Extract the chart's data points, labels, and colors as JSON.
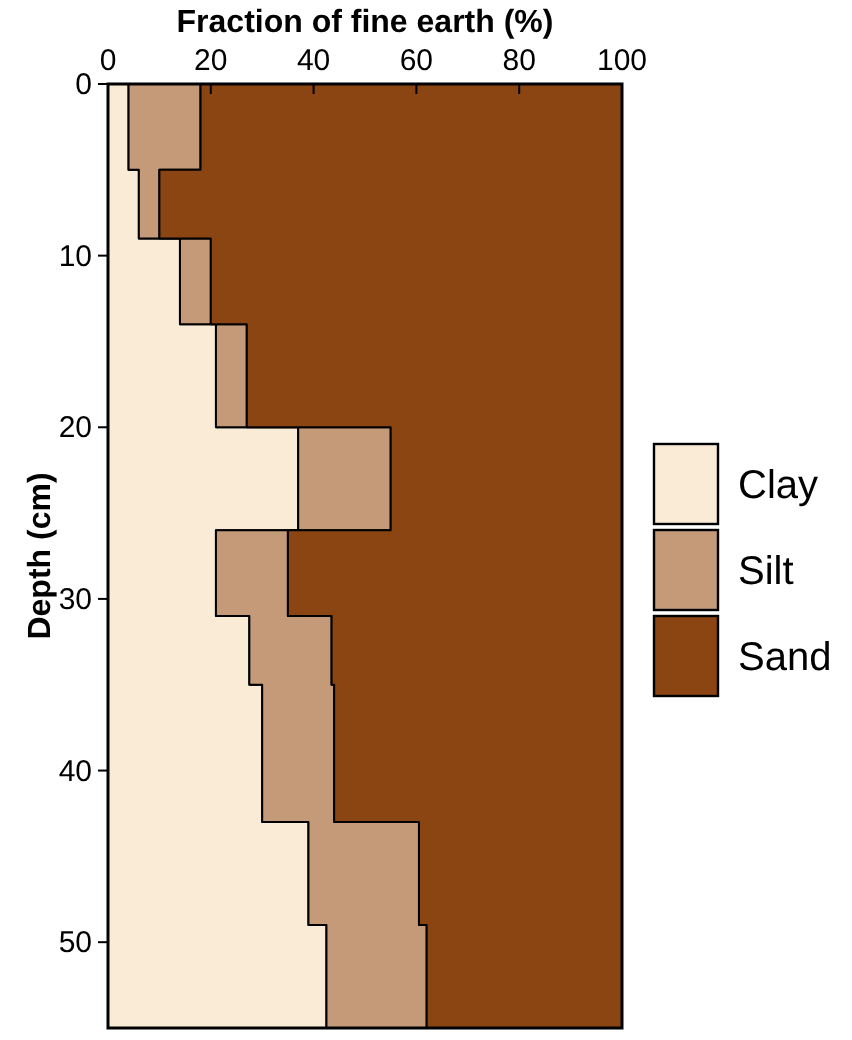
{
  "chart_data": {
    "type": "area",
    "orientation": "horizontal",
    "stacked": true,
    "xlabel": "Fraction of fine earth (%)",
    "ylabel": "Depth (cm)",
    "x": [
      0,
      5,
      5,
      9,
      9,
      14,
      14,
      20,
      20,
      26,
      26,
      31,
      31,
      35,
      35,
      43,
      43,
      49,
      49,
      55
    ],
    "series": [
      {
        "name": "Clay",
        "color": "#faebd7",
        "values": [
          4,
          4,
          6,
          6,
          14,
          14,
          21,
          21,
          37,
          37,
          21,
          21,
          27.5,
          27.5,
          30,
          30,
          39,
          39,
          42.5,
          42.5
        ]
      },
      {
        "name": "Silt",
        "color": "#c49a78",
        "values": [
          14,
          14,
          4,
          4,
          6,
          6,
          6,
          6,
          18,
          18,
          14,
          14,
          16,
          16,
          14,
          14,
          21.5,
          21.5,
          19.5,
          19.5
        ]
      },
      {
        "name": "Sand",
        "color": "#8b4513",
        "values": [
          82,
          82,
          90,
          90,
          80,
          80,
          73,
          73,
          45,
          45,
          65,
          65,
          56.5,
          56.5,
          56,
          56,
          39.5,
          39.5,
          38,
          38
        ]
      }
    ],
    "xlim": [
      0,
      100
    ],
    "xticks": [
      0,
      20,
      40,
      60,
      80,
      100
    ],
    "ylim": [
      55,
      0
    ],
    "yticks": [
      0,
      10,
      20,
      30,
      40,
      50
    ],
    "legend": "right"
  }
}
